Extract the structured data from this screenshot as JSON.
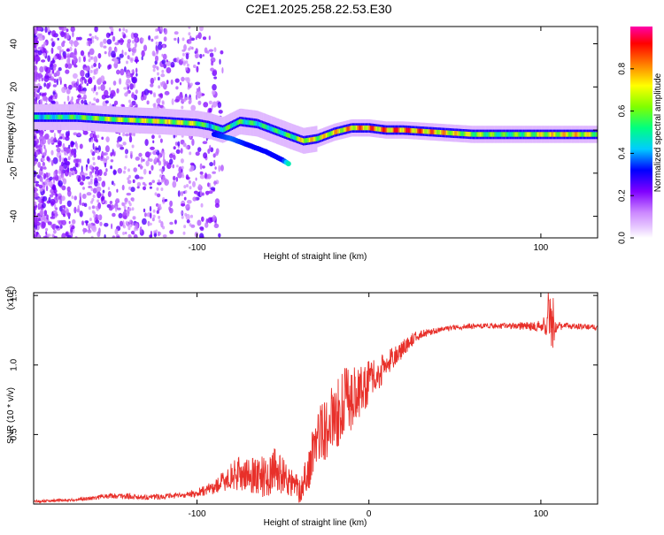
{
  "figure_title": "C2E1.2025.258.22.53.E30",
  "chart_data": [
    {
      "type": "heatmap",
      "title": "C2E1.2025.258.22.53.E30",
      "xlabel": "Height of straight line (km)",
      "ylabel": "Frequency (Hz)",
      "xlim": [
        -195,
        133
      ],
      "ylim": [
        -50,
        48
      ],
      "xticks": [
        -100,
        100
      ],
      "yticks": [
        40,
        20,
        0,
        -20,
        -40
      ],
      "colorbar": {
        "label": "Normalized spectral amplitude",
        "range": [
          0,
          1
        ],
        "ticks": [
          0.0,
          0.2,
          0.4,
          0.6,
          0.8
        ],
        "tick_labels": [
          "0.0",
          "0.2",
          "0.4",
          "0.6",
          "0.8"
        ],
        "colors": [
          "#ffffff",
          "#cc88ff",
          "#8000ff",
          "#0000ff",
          "#00ccff",
          "#00ff80",
          "#80ff00",
          "#ffff00",
          "#ff8000",
          "#ff0000",
          "#ff00aa"
        ]
      },
      "ridge": {
        "x": [
          -195,
          -170,
          -150,
          -120,
          -100,
          -93,
          -85,
          -75,
          -65,
          -55,
          -45,
          -38,
          -30,
          -20,
          -10,
          0,
          10,
          20,
          40,
          60,
          80,
          100,
          120,
          133
        ],
        "frequency_hz": [
          6,
          6,
          5,
          4,
          3,
          2,
          0,
          4,
          3,
          0,
          -3,
          -5,
          -4,
          -1,
          1,
          1,
          0,
          0,
          -1,
          -2,
          -2,
          -2,
          -2,
          -2
        ],
        "amplitude": [
          0.5,
          0.6,
          0.7,
          0.75,
          0.7,
          0.5,
          0.6,
          0.6,
          0.55,
          0.55,
          0.6,
          0.8,
          0.75,
          0.8,
          0.85,
          0.9,
          0.9,
          0.95,
          0.85,
          0.7,
          0.6,
          0.75,
          0.8,
          0.7
        ]
      },
      "secondary_branch": {
        "x": [
          -90,
          -80,
          -70,
          -60,
          -55,
          -50,
          -46
        ],
        "frequency_hz": [
          -2,
          -4,
          -7,
          -10,
          -12,
          -14,
          -16
        ],
        "amplitude": [
          0.3,
          0.35,
          0.3,
          0.3,
          0.3,
          0.3,
          0.5
        ]
      }
    },
    {
      "type": "line",
      "xlabel": "Height of straight line (km)",
      "ylabel": "SNR (10 * v/v)",
      "multiplier_label": "(x10",
      "multiplier_exp": "4",
      "xlim": [
        -195,
        133
      ],
      "ylim": [
        0,
        1.52
      ],
      "xticks": [
        -100,
        0,
        100
      ],
      "yticks": [
        0.5,
        1.0,
        1.5
      ],
      "ytick_labels": [
        "0.5",
        "1.0",
        "1.5"
      ],
      "series": [
        {
          "name": "SNR",
          "color": "#e8302a",
          "x": [
            -195,
            -170,
            -150,
            -130,
            -110,
            -100,
            -90,
            -80,
            -75,
            -70,
            -65,
            -60,
            -55,
            -50,
            -45,
            -40,
            -35,
            -30,
            -25,
            -20,
            -15,
            -10,
            -5,
            0,
            5,
            10,
            15,
            20,
            25,
            30,
            40,
            50,
            60,
            70,
            80,
            90,
            100,
            105,
            110,
            120,
            133
          ],
          "y": [
            0.02,
            0.03,
            0.06,
            0.05,
            0.06,
            0.08,
            0.12,
            0.2,
            0.22,
            0.2,
            0.22,
            0.18,
            0.25,
            0.2,
            0.15,
            0.1,
            0.25,
            0.5,
            0.55,
            0.62,
            0.72,
            0.78,
            0.8,
            0.88,
            0.92,
            1.0,
            1.06,
            1.12,
            1.18,
            1.22,
            1.25,
            1.27,
            1.28,
            1.28,
            1.28,
            1.28,
            1.28,
            1.3,
            1.28,
            1.28,
            1.27
          ],
          "noise_amplitude": [
            0.01,
            0.01,
            0.02,
            0.02,
            0.02,
            0.03,
            0.05,
            0.1,
            0.12,
            0.12,
            0.15,
            0.15,
            0.15,
            0.15,
            0.1,
            0.1,
            0.15,
            0.2,
            0.25,
            0.25,
            0.25,
            0.25,
            0.2,
            0.15,
            0.12,
            0.1,
            0.08,
            0.06,
            0.05,
            0.03,
            0.02,
            0.02,
            0.02,
            0.02,
            0.02,
            0.03,
            0.04,
            0.12,
            0.03,
            0.02,
            0.02
          ]
        }
      ]
    }
  ]
}
